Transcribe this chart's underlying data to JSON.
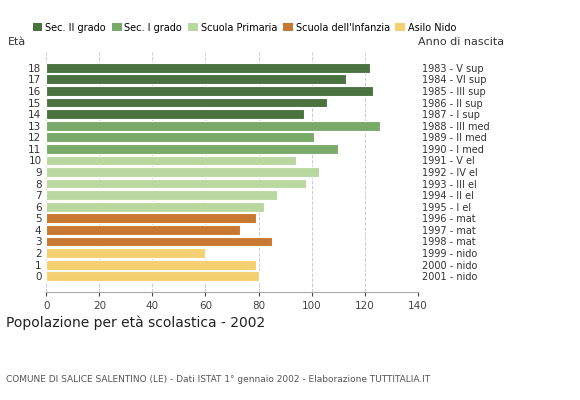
{
  "ages": [
    18,
    17,
    16,
    15,
    14,
    13,
    12,
    11,
    10,
    9,
    8,
    7,
    6,
    5,
    4,
    3,
    2,
    1,
    0
  ],
  "values": [
    122,
    113,
    123,
    106,
    97,
    126,
    101,
    110,
    94,
    103,
    98,
    87,
    82,
    79,
    73,
    85,
    60,
    79,
    80
  ],
  "colors": [
    "#4a7340",
    "#4a7340",
    "#4a7340",
    "#4a7340",
    "#4a7340",
    "#7aaa6a",
    "#7aaa6a",
    "#7aaa6a",
    "#b8d8a0",
    "#b8d8a0",
    "#b8d8a0",
    "#b8d8a0",
    "#b8d8a0",
    "#c87830",
    "#c87830",
    "#c87830",
    "#f5d070",
    "#f5d070",
    "#f5d070"
  ],
  "right_labels": [
    "1983 - V sup",
    "1984 - VI sup",
    "1985 - III sup",
    "1986 - II sup",
    "1987 - I sup",
    "1988 - III med",
    "1989 - II med",
    "1990 - I med",
    "1991 - V el",
    "1992 - IV el",
    "1993 - III el",
    "1994 - II el",
    "1995 - I el",
    "1996 - mat",
    "1997 - mat",
    "1998 - mat",
    "1999 - nido",
    "2000 - nido",
    "2001 - nido"
  ],
  "legend_labels": [
    "Sec. II grado",
    "Sec. I grado",
    "Scuola Primaria",
    "Scuola dell'Infanzia",
    "Asilo Nido"
  ],
  "legend_colors": [
    "#4a7340",
    "#7aaa6a",
    "#b8d8a0",
    "#c87830",
    "#f5d070"
  ],
  "label_eta": "Età",
  "label_anno": "Anno di nascita",
  "title": "Popolazione per età scolastica - 2002",
  "subtitle": "COMUNE DI SALICE SALENTINO (LE) - Dati ISTAT 1° gennaio 2002 - Elaborazione TUTTITALIA.IT",
  "xlim": [
    0,
    140
  ],
  "xticks": [
    0,
    20,
    40,
    60,
    80,
    100,
    120,
    140
  ],
  "background_color": "#ffffff",
  "grid_color": "#cccccc",
  "bar_edge_color": "#ffffff"
}
